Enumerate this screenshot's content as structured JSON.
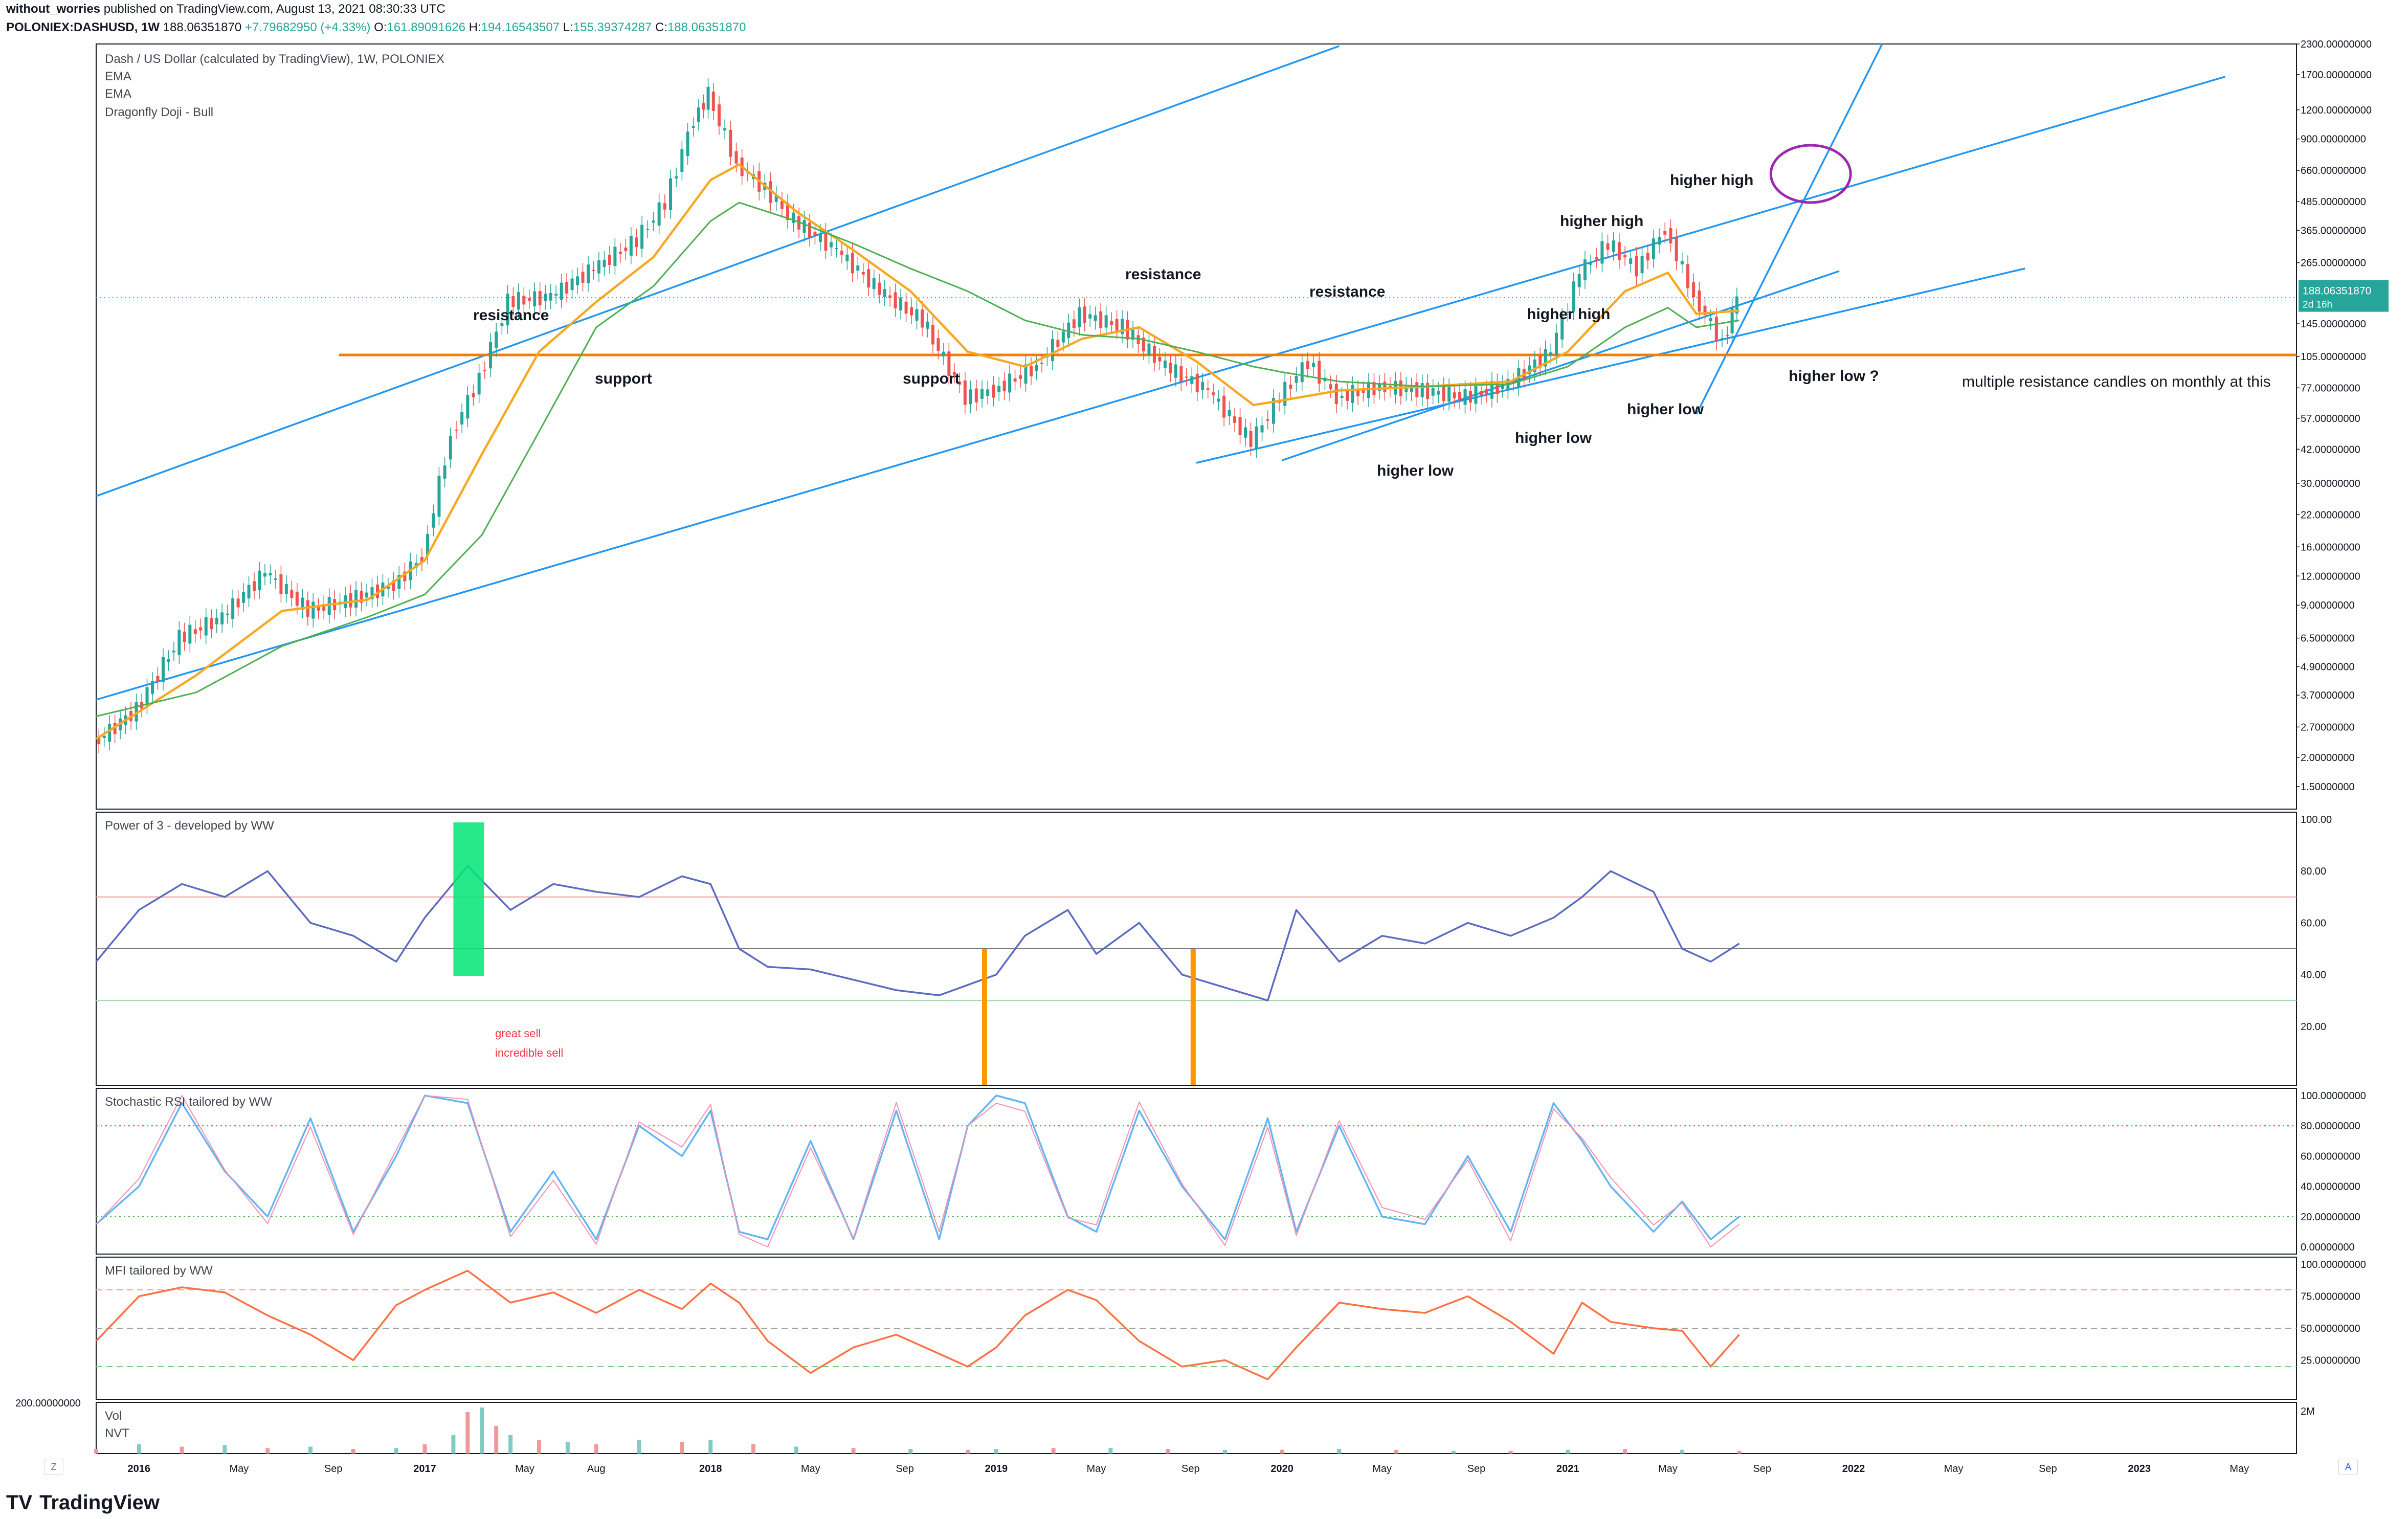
{
  "header": {
    "author": "without_worries",
    "published": "published on TradingView.com, August 13, 2021 08:30:33 UTC",
    "symbol": "POLONIEX:DASHUSD, 1W",
    "price": "188.06351870",
    "change": "+7.79682950 (+4.33%)",
    "o_label": "O:",
    "o": "161.89091626",
    "h_label": "H:",
    "h": "194.16543507",
    "l_label": "L:",
    "l": "155.39374287",
    "c_label": "C:",
    "c": "188.06351870"
  },
  "legend": {
    "title": "Dash / US Dollar (calculated by TradingView), 1W, POLONIEX",
    "ema1": "EMA",
    "ema2": "EMA",
    "pattern": "Dragonfly Doji - Bull"
  },
  "brand": {
    "logo": "TV",
    "name": "TradingView"
  },
  "buttons": {
    "zoom": "Z",
    "auto": "A"
  },
  "colors": {
    "up": "#26a69a",
    "down": "#ef5350",
    "ema_fast": "#f7a823",
    "ema_slow": "#4caf50",
    "trendline": "#2196f3",
    "resistance": "#f57c00",
    "circle": "#9c27b0"
  },
  "chart_data": [
    {
      "type": "line",
      "panel": "price",
      "scale": "log",
      "ylim": [
        1.2,
        2300
      ],
      "x_ticks": [
        "2016",
        "May",
        "Sep",
        "2017",
        "May",
        "Aug",
        "2018",
        "May",
        "Sep",
        "2019",
        "May",
        "Sep",
        "2020",
        "May",
        "Sep",
        "2021",
        "May",
        "Sep",
        "2022",
        "May",
        "Sep",
        "2023",
        "May"
      ],
      "y_ticks": [
        "2300.00000000",
        "1700.00000000",
        "1200.00000000",
        "900.00000000",
        "660.00000000",
        "485.00000000",
        "365.00000000",
        "265.00000000",
        "188.06351870",
        "145.00000000",
        "105.00000000",
        "77.00000000",
        "57.00000000",
        "42.00000000",
        "30.00000000",
        "22.00000000",
        "16.00000000",
        "12.00000000",
        "9.00000000",
        "6.50000000",
        "4.90000000",
        "3.70000000",
        "2.70000000",
        "2.00000000",
        "1.50000000"
      ],
      "last_price_label": "188.06351870",
      "last_price_sublabel": "2d 16h",
      "series": [
        {
          "name": "DASHUSD",
          "kind": "candles",
          "x": [
            2015.85,
            2016.0,
            2016.15,
            2016.3,
            2016.45,
            2016.6,
            2016.75,
            2016.9,
            2017.0,
            2017.1,
            2017.2,
            2017.3,
            2017.45,
            2017.6,
            2017.75,
            2017.85,
            2017.95,
            2018.0,
            2018.1,
            2018.2,
            2018.3,
            2018.45,
            2018.6,
            2018.75,
            2018.9,
            2019.0,
            2019.15,
            2019.3,
            2019.45,
            2019.6,
            2019.75,
            2019.9,
            2020.0,
            2020.1,
            2020.2,
            2020.35,
            2020.5,
            2020.65,
            2020.8,
            2020.95,
            2021.05,
            2021.15,
            2021.25,
            2021.35,
            2021.45,
            2021.55,
            2021.6
          ],
          "values": [
            2.3,
            3.2,
            6.5,
            8.0,
            12.5,
            8.5,
            9.5,
            11.0,
            14.5,
            48.0,
            85.0,
            180.0,
            190.0,
            250.0,
            330.0,
            480.0,
            1100.0,
            1400.0,
            700.0,
            550.0,
            400.0,
            300.0,
            200.0,
            150.0,
            70.0,
            75.0,
            95.0,
            160.0,
            140.0,
            95.0,
            75.0,
            45.0,
            70.0,
            100.0,
            70.0,
            78.0,
            75.0,
            70.0,
            80.0,
            110.0,
            240.0,
            320.0,
            250.0,
            370.0,
            190.0,
            120.0,
            188.06
          ]
        },
        {
          "name": "EMA",
          "kind": "ema_fast",
          "x": [
            2015.85,
            2016.2,
            2016.5,
            2016.8,
            2017.0,
            2017.2,
            2017.4,
            2017.6,
            2017.8,
            2018.0,
            2018.1,
            2018.3,
            2018.5,
            2018.7,
            2018.9,
            2019.1,
            2019.3,
            2019.5,
            2019.7,
            2019.9,
            2020.0,
            2020.2,
            2020.5,
            2020.8,
            2021.0,
            2021.2,
            2021.35,
            2021.45,
            2021.6
          ],
          "values": [
            2.4,
            4.5,
            8.5,
            9.5,
            14.0,
            40.0,
            110.0,
            180.0,
            280.0,
            600.0,
            700.0,
            440.0,
            300.0,
            200.0,
            110.0,
            95.0,
            125.0,
            140.0,
            100.0,
            65.0,
            68.0,
            75.0,
            78.0,
            82.0,
            110.0,
            200.0,
            240.0,
            160.0,
            165.0
          ]
        },
        {
          "name": "EMA",
          "kind": "ema_slow",
          "x": [
            2015.85,
            2016.2,
            2016.5,
            2016.8,
            2017.0,
            2017.2,
            2017.4,
            2017.6,
            2017.8,
            2018.0,
            2018.1,
            2018.3,
            2018.5,
            2018.7,
            2018.9,
            2019.1,
            2019.3,
            2019.5,
            2019.7,
            2019.9,
            2020.0,
            2020.2,
            2020.5,
            2020.8,
            2021.0,
            2021.2,
            2021.35,
            2021.45,
            2021.6
          ],
          "values": [
            3.0,
            3.8,
            6.0,
            8.0,
            10.0,
            18.0,
            50.0,
            140.0,
            210.0,
            400.0,
            480.0,
            400.0,
            320.0,
            250.0,
            200.0,
            150.0,
            130.0,
            125.0,
            110.0,
            95.0,
            90.0,
            82.0,
            78.0,
            80.0,
            95.0,
            140.0,
            170.0,
            140.0,
            150.0
          ]
        }
      ],
      "annotations": [
        "resistance",
        "support",
        "support",
        "resistance",
        "resistance",
        "higher high",
        "higher high",
        "higher high",
        "higher low",
        "higher low",
        "higher low",
        "higher low ?",
        "multiple resistance candles on monthly at this"
      ]
    },
    {
      "type": "line",
      "panel": "oscillator",
      "title": "Power of 3 - developed by WW",
      "ylim": [
        0,
        100
      ],
      "y_ticks": [
        "100.00",
        "80.00",
        "60.00",
        "40.00",
        "20.00"
      ],
      "annotations": [
        "great sell",
        "incredible sell"
      ],
      "series": [
        {
          "name": "Power of 3 - developed by WW",
          "x": [
            2015.85,
            2016.0,
            2016.15,
            2016.3,
            2016.45,
            2016.6,
            2016.75,
            2016.9,
            2017.0,
            2017.15,
            2017.3,
            2017.45,
            2017.6,
            2017.75,
            2017.9,
            2018.0,
            2018.1,
            2018.2,
            2018.35,
            2018.5,
            2018.65,
            2018.8,
            2018.9,
            2019.0,
            2019.1,
            2019.25,
            2019.35,
            2019.5,
            2019.65,
            2019.8,
            2019.95,
            2020.05,
            2020.2,
            2020.35,
            2020.5,
            2020.65,
            2020.8,
            2020.95,
            2021.05,
            2021.15,
            2021.3,
            2021.4,
            2021.5,
            2021.6
          ],
          "values": [
            45,
            65,
            75,
            70,
            80,
            60,
            55,
            45,
            62,
            82,
            65,
            75,
            72,
            70,
            78,
            75,
            50,
            43,
            42,
            38,
            34,
            32,
            36,
            40,
            55,
            65,
            48,
            60,
            40,
            35,
            30,
            65,
            45,
            55,
            52,
            60,
            55,
            62,
            70,
            80,
            72,
            50,
            45,
            52
          ]
        }
      ]
    },
    {
      "type": "line",
      "panel": "oscillator",
      "title": "Stochastic RSI tailored by WW",
      "ylim": [
        0,
        100
      ],
      "y_ticks": [
        "100.00000000",
        "80.00000000",
        "60.00000000",
        "40.00000000",
        "20.00000000",
        "0.00000000"
      ],
      "series": [
        {
          "name": "Stochastic RSI tailored by WW",
          "x": [
            2015.85,
            2016.0,
            2016.15,
            2016.3,
            2016.45,
            2016.6,
            2016.75,
            2016.9,
            2017.0,
            2017.15,
            2017.3,
            2017.45,
            2017.6,
            2017.75,
            2017.9,
            2018.0,
            2018.1,
            2018.2,
            2018.35,
            2018.5,
            2018.65,
            2018.8,
            2018.9,
            2019.0,
            2019.1,
            2019.25,
            2019.35,
            2019.5,
            2019.65,
            2019.8,
            2019.95,
            2020.05,
            2020.2,
            2020.35,
            2020.5,
            2020.65,
            2020.8,
            2020.95,
            2021.05,
            2021.15,
            2021.3,
            2021.4,
            2021.5,
            2021.6
          ],
          "values": [
            15,
            40,
            95,
            50,
            20,
            85,
            10,
            60,
            100,
            95,
            10,
            50,
            5,
            80,
            60,
            90,
            10,
            5,
            70,
            5,
            90,
            5,
            80,
            100,
            95,
            20,
            10,
            90,
            40,
            5,
            85,
            10,
            80,
            20,
            15,
            60,
            10,
            95,
            70,
            40,
            10,
            30,
            5,
            20
          ]
        }
      ]
    },
    {
      "type": "line",
      "panel": "oscillator",
      "title": "MFI tailored by WW",
      "ylim": [
        0,
        100
      ],
      "y_ticks": [
        "100.00000000",
        "75.00000000",
        "50.00000000",
        "25.00000000"
      ],
      "series": [
        {
          "name": "MFI tailored by WW",
          "x": [
            2015.85,
            2016.0,
            2016.15,
            2016.3,
            2016.45,
            2016.6,
            2016.75,
            2016.9,
            2017.0,
            2017.15,
            2017.3,
            2017.45,
            2017.6,
            2017.75,
            2017.9,
            2018.0,
            2018.1,
            2018.2,
            2018.35,
            2018.5,
            2018.65,
            2018.8,
            2018.9,
            2019.0,
            2019.1,
            2019.25,
            2019.35,
            2019.5,
            2019.65,
            2019.8,
            2019.95,
            2020.05,
            2020.2,
            2020.35,
            2020.5,
            2020.65,
            2020.8,
            2020.95,
            2021.05,
            2021.15,
            2021.3,
            2021.4,
            2021.5,
            2021.6
          ],
          "values": [
            40,
            75,
            82,
            78,
            60,
            45,
            25,
            68,
            80,
            95,
            70,
            78,
            62,
            80,
            65,
            85,
            70,
            40,
            15,
            35,
            45,
            30,
            20,
            35,
            60,
            80,
            72,
            40,
            20,
            25,
            10,
            35,
            70,
            65,
            62,
            75,
            55,
            30,
            70,
            55,
            50,
            48,
            20,
            45
          ]
        }
      ]
    },
    {
      "type": "bar",
      "panel": "volume",
      "title": "Vol",
      "subtitle": "NVT",
      "y_ticks": [
        "200.00000000",
        "2M"
      ],
      "x": [
        2015.85,
        2016.0,
        2016.15,
        2016.3,
        2016.45,
        2016.6,
        2016.75,
        2016.9,
        2017.0,
        2017.1,
        2017.15,
        2017.2,
        2017.25,
        2017.3,
        2017.4,
        2017.5,
        2017.6,
        2017.75,
        2017.9,
        2018.0,
        2018.15,
        2018.3,
        2018.5,
        2018.7,
        2018.9,
        2019.0,
        2019.2,
        2019.4,
        2019.6,
        2019.8,
        2020.0,
        2020.2,
        2020.4,
        2020.6,
        2020.8,
        2021.0,
        2021.2,
        2021.4,
        2021.6
      ],
      "values": [
        10,
        20,
        15,
        18,
        12,
        15,
        10,
        12,
        20,
        40,
        90,
        100,
        60,
        40,
        30,
        25,
        20,
        30,
        25,
        30,
        20,
        15,
        12,
        10,
        8,
        10,
        12,
        12,
        10,
        8,
        8,
        10,
        8,
        6,
        6,
        8,
        10,
        8,
        6
      ]
    }
  ]
}
